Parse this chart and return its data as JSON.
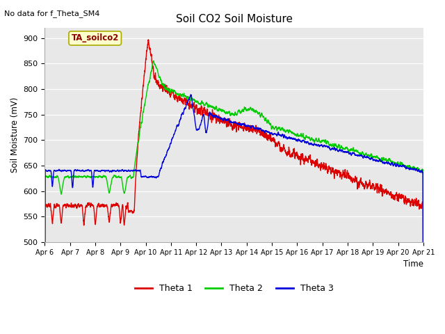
{
  "title": "Soil CO2 Soil Moisture",
  "subtitle": "No data for f_Theta_SM4",
  "ylabel": "Soil Moisture (mV)",
  "xlabel": "Time",
  "annotation": "TA_soilco2",
  "ylim": [
    500,
    920
  ],
  "yticks": [
    500,
    550,
    600,
    650,
    700,
    750,
    800,
    850,
    900
  ],
  "bg_color": "#e8e8e8",
  "colors": {
    "theta1": "#dd0000",
    "theta2": "#00cc00",
    "theta3": "#0000dd"
  },
  "legend_labels": [
    "Theta 1",
    "Theta 2",
    "Theta 3"
  ],
  "xticklabels": [
    "Apr 6",
    "Apr 7",
    "Apr 8",
    "Apr 9",
    "Apr 10",
    "Apr 11",
    "Apr 12",
    "Apr 13",
    "Apr 14",
    "Apr 15",
    "Apr 16",
    "Apr 17",
    "Apr 18",
    "Apr 19",
    "Apr 20",
    "Apr 21"
  ]
}
